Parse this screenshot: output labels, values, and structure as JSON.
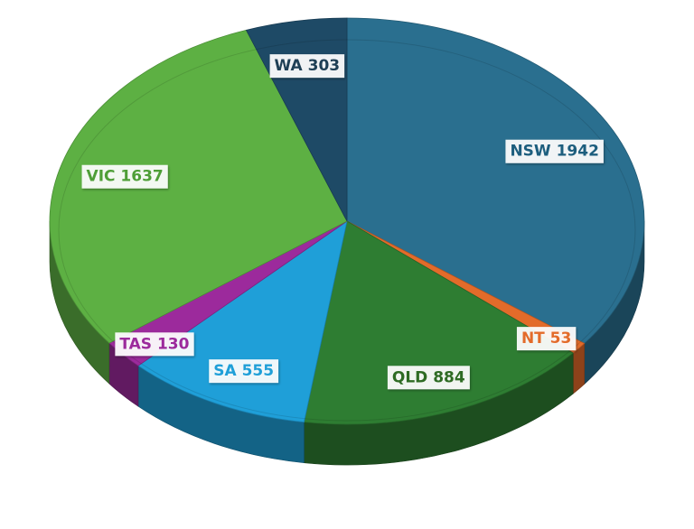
{
  "chart_data": {
    "type": "pie",
    "title": "",
    "categories": [
      "NSW",
      "NT",
      "QLD",
      "SA",
      "TAS",
      "VIC",
      "WA"
    ],
    "values": [
      1942,
      53,
      884,
      555,
      130,
      1637,
      303
    ],
    "colors": [
      "#2a6f8f",
      "#e36b2a",
      "#2e7d32",
      "#1f9fd8",
      "#9c2a9c",
      "#5db043",
      "#1e4a66"
    ],
    "label_colors": [
      "#1d5e7e",
      "#e36b2a",
      "#2e6b23",
      "#1f9fd8",
      "#9c2a9c",
      "#4e9e37",
      "#1e3f55"
    ],
    "labels": [
      "NSW 1942",
      "NT 53",
      "QLD 884",
      "SA 555",
      "TAS 130",
      "VIC 1637",
      "WA 303"
    ],
    "style": "3d",
    "legend": "none"
  }
}
